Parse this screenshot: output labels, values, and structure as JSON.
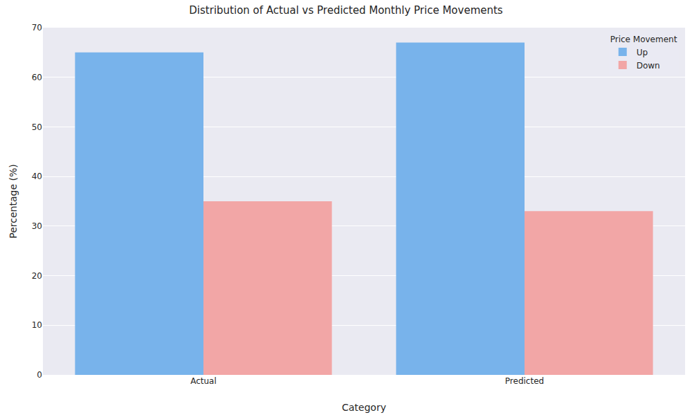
{
  "chart_data": {
    "type": "bar",
    "title": "Distribution of Actual vs Predicted Monthly Price Movements",
    "x_label": "Category",
    "y_label": "Percentage (%)",
    "legend_title": "Price Movement",
    "categories": [
      "Actual",
      "Predicted"
    ],
    "series": [
      {
        "name": "Up",
        "color": "#78b3eb",
        "values": [
          65,
          67
        ]
      },
      {
        "name": "Down",
        "color": "#f2a6a6",
        "values": [
          35,
          33
        ]
      }
    ],
    "ylim": [
      0,
      70
    ],
    "yticks": [
      0,
      10,
      20,
      30,
      40,
      50,
      60,
      70
    ],
    "grid": true,
    "legend": "upper right"
  }
}
